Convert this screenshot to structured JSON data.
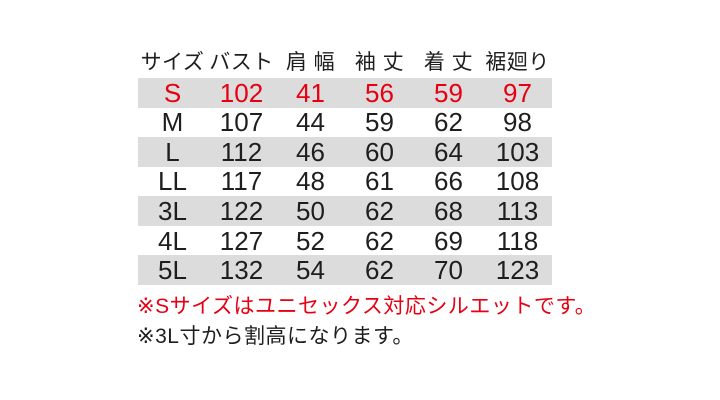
{
  "colors": {
    "highlight": "#e60012",
    "ink": "#1e1e1e",
    "row_stripe": "#dcdcdc",
    "row_plain": "#ffffff",
    "background": "#ffffff"
  },
  "size_chart": {
    "columns": [
      "サイズ",
      "バスト",
      "肩 幅",
      "袖 丈",
      "着 丈",
      "裾廻り"
    ],
    "rows": [
      {
        "cells": [
          "S",
          "102",
          "41",
          "56",
          "59",
          "97"
        ],
        "striped": true,
        "highlighted": true
      },
      {
        "cells": [
          "M",
          "107",
          "44",
          "59",
          "62",
          "98"
        ],
        "striped": false,
        "highlighted": false
      },
      {
        "cells": [
          "L",
          "112",
          "46",
          "60",
          "64",
          "103"
        ],
        "striped": true,
        "highlighted": false
      },
      {
        "cells": [
          "LL",
          "117",
          "48",
          "61",
          "66",
          "108"
        ],
        "striped": false,
        "highlighted": false
      },
      {
        "cells": [
          "3L",
          "122",
          "50",
          "62",
          "68",
          "113"
        ],
        "striped": true,
        "highlighted": false
      },
      {
        "cells": [
          "4L",
          "127",
          "52",
          "62",
          "69",
          "118"
        ],
        "striped": false,
        "highlighted": false
      },
      {
        "cells": [
          "5L",
          "132",
          "54",
          "62",
          "70",
          "123"
        ],
        "striped": true,
        "highlighted": false
      }
    ]
  },
  "notes": [
    {
      "text": "※Sサイズはユニセックス対応シルエットです。",
      "color": "#e60012"
    },
    {
      "text": "※3L寸から割高になります。",
      "color": "#1e1e1e"
    }
  ],
  "chart_data": {
    "type": "table",
    "columns": [
      "サイズ",
      "バスト",
      "肩幅",
      "袖丈",
      "着丈",
      "裾廻り"
    ],
    "rows": [
      [
        "S",
        102,
        41,
        56,
        59,
        97
      ],
      [
        "M",
        107,
        44,
        59,
        62,
        98
      ],
      [
        "L",
        112,
        46,
        60,
        64,
        103
      ],
      [
        "LL",
        117,
        48,
        61,
        66,
        108
      ],
      [
        "3L",
        122,
        50,
        62,
        68,
        113
      ],
      [
        "4L",
        127,
        52,
        62,
        69,
        118
      ],
      [
        "5L",
        132,
        54,
        62,
        70,
        123
      ]
    ],
    "highlighted_row": "S",
    "highlight_color": "#e60012",
    "stripe_color": "#dcdcdc",
    "annotations": [
      "※Sサイズはユニセックス対応シルエットです。",
      "※3L寸から割高になります。"
    ]
  }
}
